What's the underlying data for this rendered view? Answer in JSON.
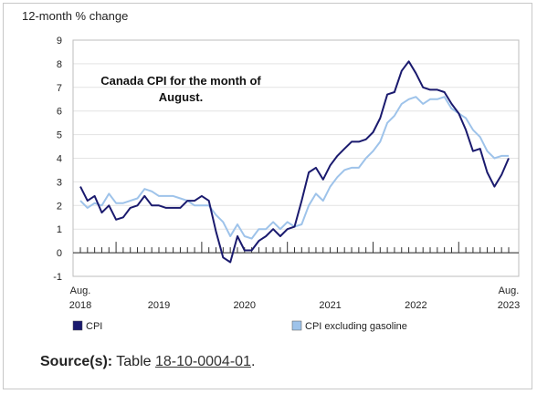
{
  "chart_data": {
    "type": "line",
    "ylabel": "12-month % change",
    "ylim": [
      -1,
      9
    ],
    "yticks": [
      -1,
      0,
      1,
      2,
      3,
      4,
      5,
      6,
      7,
      8,
      9
    ],
    "x_start": "2018-08",
    "x_end": "2023-08",
    "xtick_labels": [
      {
        "month": "2018-08",
        "line1": "Aug.",
        "line2": "2018"
      },
      {
        "month": "2019-07",
        "line1": "",
        "line2": "2019"
      },
      {
        "month": "2020-07",
        "line1": "",
        "line2": "2020"
      },
      {
        "month": "2021-07",
        "line1": "",
        "line2": "2021"
      },
      {
        "month": "2022-07",
        "line1": "",
        "line2": "2022"
      },
      {
        "month": "2023-08",
        "line1": "Aug.",
        "line2": "2023"
      }
    ],
    "annotation": "Canada CPI for the month of August.",
    "annotation_lines": [
      "Canada CPI for the month of",
      "August."
    ],
    "legend_position": "bottom",
    "series": [
      {
        "name": "CPI",
        "color": "#1a1a6e",
        "values": [
          2.8,
          2.2,
          2.4,
          1.7,
          2.0,
          1.4,
          1.5,
          1.9,
          2.0,
          2.4,
          2.0,
          2.0,
          1.9,
          1.9,
          1.9,
          2.2,
          2.2,
          2.4,
          2.2,
          0.9,
          -0.2,
          -0.4,
          0.7,
          0.1,
          0.1,
          0.5,
          0.7,
          1.0,
          0.7,
          1.0,
          1.1,
          2.2,
          3.4,
          3.6,
          3.1,
          3.7,
          4.1,
          4.4,
          4.7,
          4.7,
          4.8,
          5.1,
          5.7,
          6.7,
          6.8,
          7.7,
          8.1,
          7.6,
          7.0,
          6.9,
          6.9,
          6.8,
          6.3,
          5.9,
          5.2,
          4.3,
          4.4,
          3.4,
          2.8,
          3.3,
          4.0
        ]
      },
      {
        "name": "CPI excluding gasoline",
        "color": "#9ec3ea",
        "values": [
          2.2,
          1.9,
          2.1,
          2.0,
          2.5,
          2.1,
          2.1,
          2.2,
          2.3,
          2.7,
          2.6,
          2.4,
          2.4,
          2.4,
          2.3,
          2.2,
          2.0,
          2.0,
          2.0,
          1.6,
          1.3,
          0.7,
          1.2,
          0.7,
          0.6,
          1.0,
          1.0,
          1.3,
          1.0,
          1.3,
          1.1,
          1.2,
          2.0,
          2.5,
          2.2,
          2.8,
          3.2,
          3.5,
          3.6,
          3.6,
          4.0,
          4.3,
          4.7,
          5.5,
          5.8,
          6.3,
          6.5,
          6.6,
          6.3,
          6.5,
          6.5,
          6.6,
          6.1,
          5.9,
          5.7,
          5.2,
          4.9,
          4.3,
          4.0,
          4.1,
          4.1
        ]
      }
    ]
  },
  "source": {
    "label": "Source(s):",
    "text": "Table",
    "link": "18-10-0004-01",
    "end": "."
  }
}
